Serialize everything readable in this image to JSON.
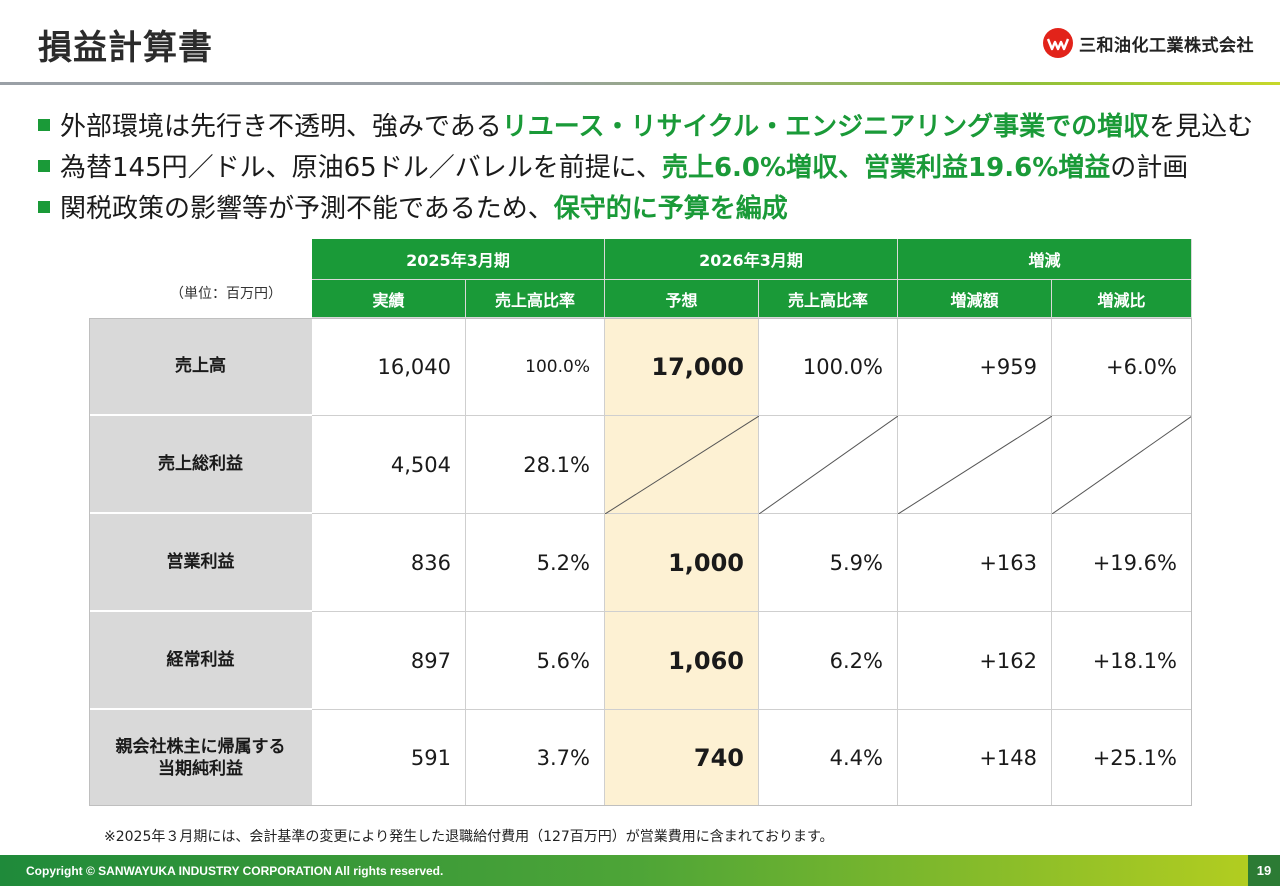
{
  "title": "損益計算書",
  "company": "三和油化工業株式会社",
  "bullets": [
    {
      "pre": "外部環境は先行き不透明、強みである",
      "hl": "リユース・リサイクル・エンジニアリング事業での増収",
      "post": "を見込む"
    },
    {
      "pre": "為替145円／ドル、原油65ドル／バレルを前提に、",
      "hl": "売上6.0%増収、営業利益19.6%増益",
      "post": "の計画"
    },
    {
      "pre": "関税政策の影響等が予測不能であるため、",
      "hl": "保守的に予算を編成",
      "post": ""
    }
  ],
  "table": {
    "unit": "（単位：百万円）",
    "groups": [
      "2025年3月期",
      "2026年3月期",
      "増減"
    ],
    "columns": [
      "実績",
      "売上高比率",
      "予想",
      "売上高比率",
      "増減額",
      "増減比"
    ],
    "rows": [
      {
        "label": "売上高",
        "actual": "16,040",
        "actual_ratio": "100.0%",
        "forecast": "17,000",
        "forecast_ratio": "100.0%",
        "diff": "+959",
        "diff_ratio": "+6.0%"
      },
      {
        "label": "売上総利益",
        "actual": "4,504",
        "actual_ratio": "28.1%"
      },
      {
        "label": "営業利益",
        "actual": "836",
        "actual_ratio": "5.2%",
        "forecast": "1,000",
        "forecast_ratio": "5.9%",
        "diff": "+163",
        "diff_ratio": "+19.6%"
      },
      {
        "label": "経常利益",
        "actual": "897",
        "actual_ratio": "5.6%",
        "forecast": "1,060",
        "forecast_ratio": "6.2%",
        "diff": "+162",
        "diff_ratio": "+18.1%"
      },
      {
        "label_line1": "親会社株主に帰属する",
        "label_line2": "当期純利益",
        "actual": "591",
        "actual_ratio": "3.7%",
        "forecast": "740",
        "forecast_ratio": "4.4%",
        "diff": "+148",
        "diff_ratio": "+25.1%"
      }
    ]
  },
  "footnote": "※2025年３月期には、会計基準の変更により発生した退職給付費用（127百万円）が営業費用に含まれております。",
  "footer": {
    "copyright": "Copyright © SANWAYUKA INDUSTRY CORPORATION All rights reserved.",
    "page": "19"
  },
  "colors": {
    "accent": "#1a9a38",
    "forecast_bg": "#fdf1d3",
    "label_bg": "#d9d9d9",
    "logo": "#e2231a"
  }
}
